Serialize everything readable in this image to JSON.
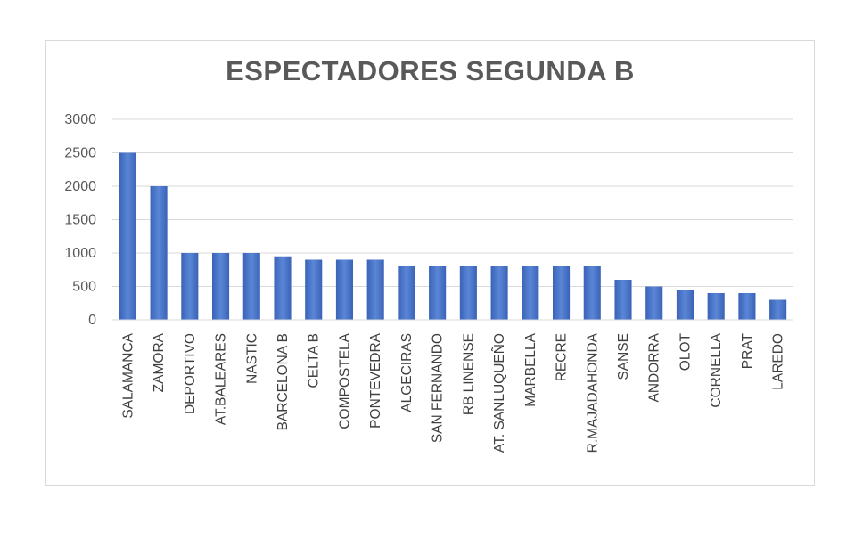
{
  "chart_data": {
    "type": "bar",
    "title": "ESPECTADORES SEGUNDA B",
    "xlabel": "",
    "ylabel": "",
    "ylim": [
      0,
      3000
    ],
    "yticks": [
      0,
      500,
      1000,
      1500,
      2000,
      2500,
      3000
    ],
    "grid": true,
    "legend": "none",
    "bar_color": "#4472c4",
    "categories": [
      "SALAMANCA",
      "ZAMORA",
      "DEPORTIVO",
      "AT.BALEARES",
      "NASTIC",
      "BARCELONA B",
      "CELTA B",
      "COMPOSTELA",
      "PONTEVEDRA",
      "ALGECIRAS",
      "SAN FERNANDO",
      "RB LINENSE",
      "AT. SANLUQUEÑO",
      "MARBELLA",
      "RECRE",
      "R.MAJADAHONDA",
      "SANSE",
      "ANDORRA",
      "OLOT",
      "CORNELLA",
      "PRAT",
      "LAREDO"
    ],
    "values": [
      2500,
      2000,
      1000,
      1000,
      1000,
      950,
      900,
      900,
      900,
      800,
      800,
      800,
      800,
      800,
      800,
      800,
      600,
      500,
      450,
      400,
      400,
      300
    ]
  }
}
